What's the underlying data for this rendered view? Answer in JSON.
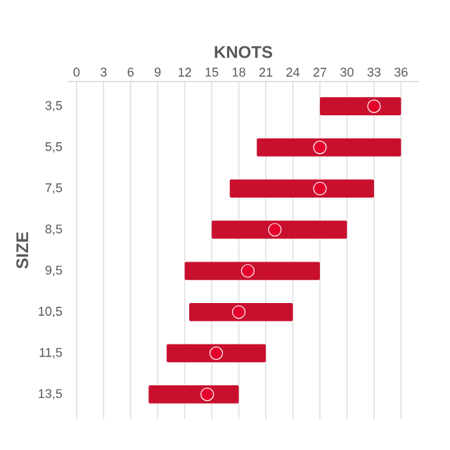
{
  "chart_data": {
    "type": "bar",
    "orientation": "horizontal",
    "xlabel": "KNOTS",
    "ylabel": "SIZE",
    "categories": [
      "3,5",
      "5,5",
      "7,5",
      "8,5",
      "9,5",
      "10,5",
      "11,5",
      "13,5"
    ],
    "series": [
      {
        "color": "#c8102e",
        "base": [
          27,
          20,
          17,
          15,
          12,
          12.5,
          10,
          8
        ],
        "values": [
          9,
          16,
          16,
          15,
          15,
          11.5,
          11,
          10
        ]
      },
      {
        "type": "scatter",
        "color": "#e4002b",
        "marker": "circle",
        "values": [
          33,
          27,
          27,
          22,
          19,
          18,
          15.5,
          14.5
        ]
      }
    ],
    "xlim": [
      -1,
      38
    ],
    "xticks": [
      0,
      3,
      6,
      9,
      12,
      15,
      18,
      21,
      24,
      27,
      30,
      33,
      36
    ],
    "grid": "x"
  }
}
